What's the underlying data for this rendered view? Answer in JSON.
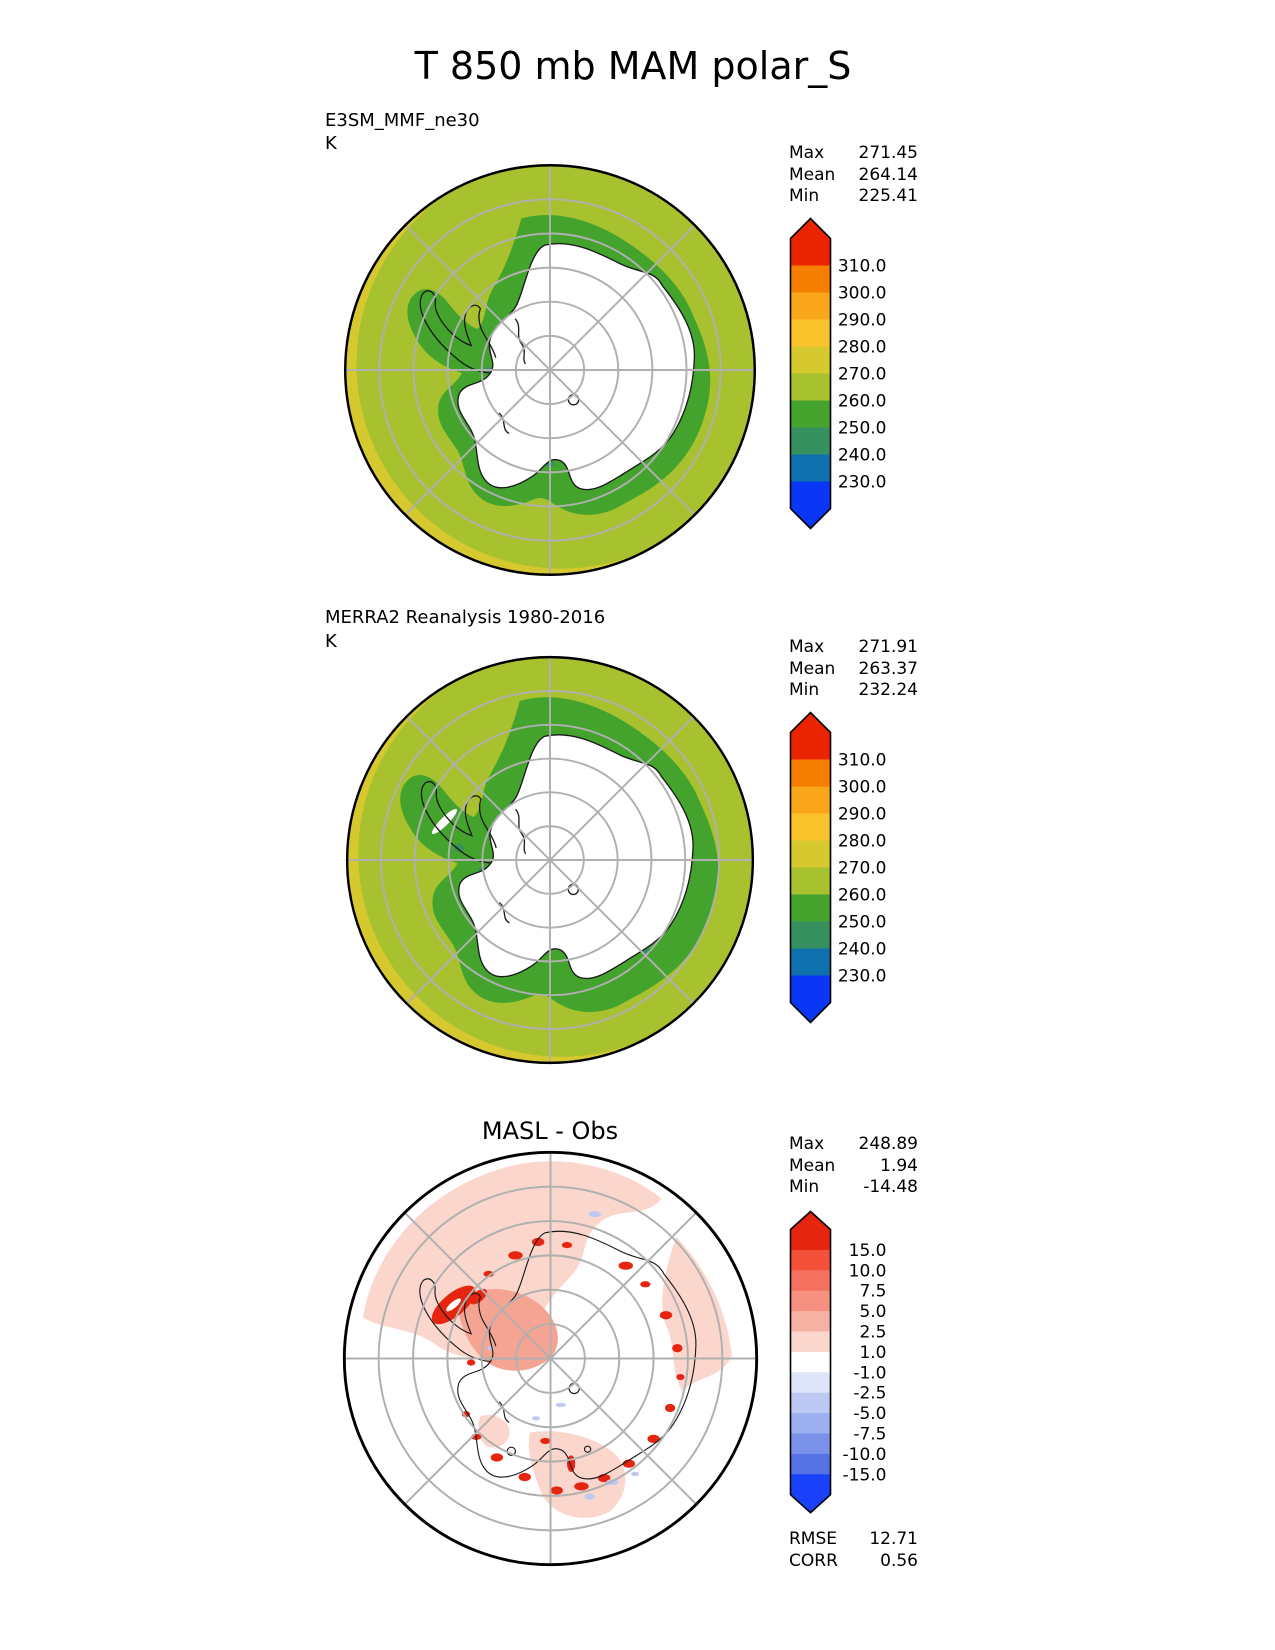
{
  "title": "T 850 mb MAM polar_S",
  "panels": [
    {
      "label": "E3SM_MMF_ne30",
      "units": "K",
      "stats": [
        {
          "name": "Max",
          "value": "271.45"
        },
        {
          "name": "Mean",
          "value": "264.14"
        },
        {
          "name": "Min",
          "value": "225.41"
        }
      ],
      "colorbar": {
        "levels": [
          "310.0",
          "300.0",
          "290.0",
          "280.0",
          "270.0",
          "260.0",
          "250.0",
          "240.0",
          "230.0"
        ],
        "colors": [
          "#eb2400",
          "#f57d00",
          "#f9a61a",
          "#fbc32b",
          "#d6c92f",
          "#a8c12e",
          "#43a32c",
          "#36905f",
          "#0f70ae",
          "#0937f5"
        ]
      }
    },
    {
      "label": "MERRA2 Reanalysis 1980-2016",
      "units": "K",
      "stats": [
        {
          "name": "Max",
          "value": "271.91"
        },
        {
          "name": "Mean",
          "value": "263.37"
        },
        {
          "name": "Min",
          "value": "232.24"
        }
      ],
      "colorbar": {
        "levels": [
          "310.0",
          "300.0",
          "290.0",
          "280.0",
          "270.0",
          "260.0",
          "250.0",
          "240.0",
          "230.0"
        ],
        "colors": [
          "#eb2400",
          "#f57d00",
          "#f9a61a",
          "#fbc32b",
          "#d6c92f",
          "#a8c12e",
          "#43a32c",
          "#36905f",
          "#0f70ae",
          "#0937f5"
        ]
      }
    },
    {
      "label": "MASL - Obs",
      "stats": [
        {
          "name": "Max",
          "value": "248.89"
        },
        {
          "name": "Mean",
          "value": "1.94"
        },
        {
          "name": "Min",
          "value": "-14.48"
        }
      ],
      "colorbar": {
        "levels": [
          "15.0",
          "10.0",
          "7.5",
          "5.0",
          "2.5",
          "1.0",
          "-1.0",
          "-2.5",
          "-5.0",
          "-7.5",
          "-10.0",
          "-15.0"
        ],
        "colors": [
          "#e5250f",
          "#f4513b",
          "#f4705f",
          "#f69080",
          "#f8b2a4",
          "#fbd6cd",
          "#ffffff",
          "#dee4f9",
          "#bdc9f3",
          "#9cafee",
          "#7a92e9",
          "#5673e4",
          "#1a41fa"
        ]
      },
      "metrics": [
        {
          "name": "RMSE",
          "value": "12.71"
        },
        {
          "name": "CORR",
          "value": "0.56"
        }
      ]
    }
  ],
  "chart_data": [
    {
      "type": "heatmap",
      "subtype": "south-polar-stereographic contour map",
      "title": "E3SM_MMF_ne30",
      "figure_title": "T 850 mb MAM polar_S",
      "units": "K",
      "contour_levels": [
        230,
        240,
        250,
        260,
        270,
        280,
        290,
        300,
        310
      ],
      "palette_low_to_high": [
        "#0937f5",
        "#0f70ae",
        "#36905f",
        "#43a32c",
        "#a8c12e",
        "#d6c92f",
        "#fbc32b",
        "#f9a61a",
        "#f57d00",
        "#eb2400"
      ],
      "stats": {
        "max": 271.45,
        "mean": 264.14,
        "min": 225.41
      },
      "legend_position": "right",
      "notes": "Ocean mostly 260-270 K band; 270-280 K sliver at left rim; 250-260 K ring along Antarctic coast; high-terrain interior masked white; gray graticule circles and 45-degree spokes"
    },
    {
      "type": "heatmap",
      "subtype": "south-polar-stereographic contour map",
      "title": "MERRA2 Reanalysis 1980-2016",
      "units": "K",
      "contour_levels": [
        230,
        240,
        250,
        260,
        270,
        280,
        290,
        300,
        310
      ],
      "palette_low_to_high": [
        "#0937f5",
        "#0f70ae",
        "#36905f",
        "#43a32c",
        "#a8c12e",
        "#d6c92f",
        "#fbc32b",
        "#f9a61a",
        "#f57d00",
        "#eb2400"
      ],
      "stats": {
        "max": 271.91,
        "mean": 263.37,
        "min": 232.24
      },
      "legend_position": "right",
      "notes": "Similar to model panel but wider 250-260 K coastal ring and small 230-250 K patches near the Antarctic Peninsula"
    },
    {
      "type": "heatmap",
      "subtype": "south-polar-stereographic difference map",
      "title": "MASL - Obs",
      "units": "K",
      "contour_levels": [
        -15,
        -10,
        -7.5,
        -5,
        -2.5,
        -1,
        1,
        2.5,
        5,
        7.5,
        10,
        15
      ],
      "palette_low_to_high": [
        "#1a41fa",
        "#5673e4",
        "#7a92e9",
        "#9cafee",
        "#bdc9f3",
        "#dee4f9",
        "#ffffff",
        "#fbd6cd",
        "#f8b2a4",
        "#f69080",
        "#f4705f",
        "#f4513b",
        "#e5250f"
      ],
      "stats": {
        "max": 248.89,
        "mean": 1.94,
        "min": -14.48
      },
      "metrics": {
        "RMSE": 12.71,
        "CORR": 0.56
      },
      "legend_position": "right",
      "notes": "Mostly near-zero (white) with 1-5 K warm patches over ocean sectors, strong >15 K warm spots along the coastline and Antarctic Peninsula, few small cool spots"
    }
  ]
}
